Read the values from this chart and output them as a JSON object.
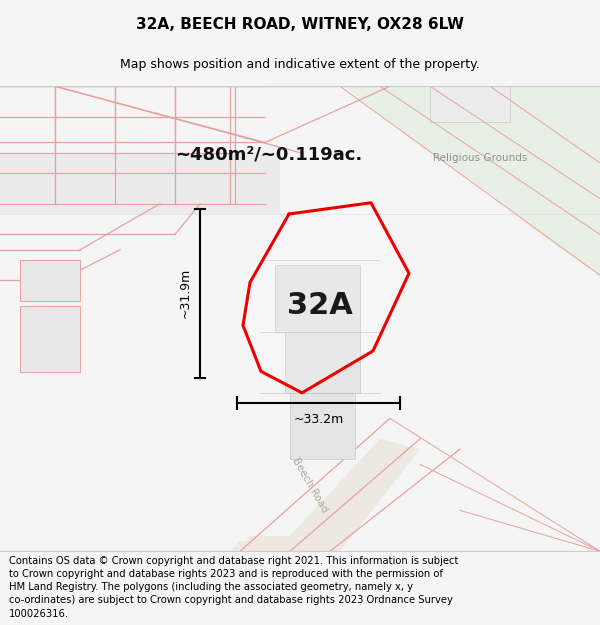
{
  "title": "32A, BEECH ROAD, WITNEY, OX28 6LW",
  "subtitle": "Map shows position and indicative extent of the property.",
  "footer": "Contains OS data © Crown copyright and database right 2021. This information is subject to Crown copyright and database rights 2023 and is reproduced with the permission of HM Land Registry. The polygons (including the associated geometry, namely x, y co-ordinates) are subject to Crown copyright and database rights 2023 Ordnance Survey 100026316.",
  "area_label": "~480m²/~0.119ac.",
  "property_label": "32A",
  "dim_vertical": "~31.9m",
  "dim_horizontal": "~33.2m",
  "road_label": "Beech Road",
  "map_label": "Religious Grounds",
  "bg_color": "#f5f5f5",
  "map_bg": "#f7f7f7",
  "green_area_color": "#e8efe4",
  "pink_line_color": "#e8a0a0",
  "gray_line_color": "#c8c8c8",
  "red_outline_color": "#ee0000",
  "title_fontsize": 11,
  "subtitle_fontsize": 9,
  "footer_fontsize": 7.2,
  "area_fontsize": 13,
  "property_fontsize": 22,
  "dim_fontsize": 9
}
